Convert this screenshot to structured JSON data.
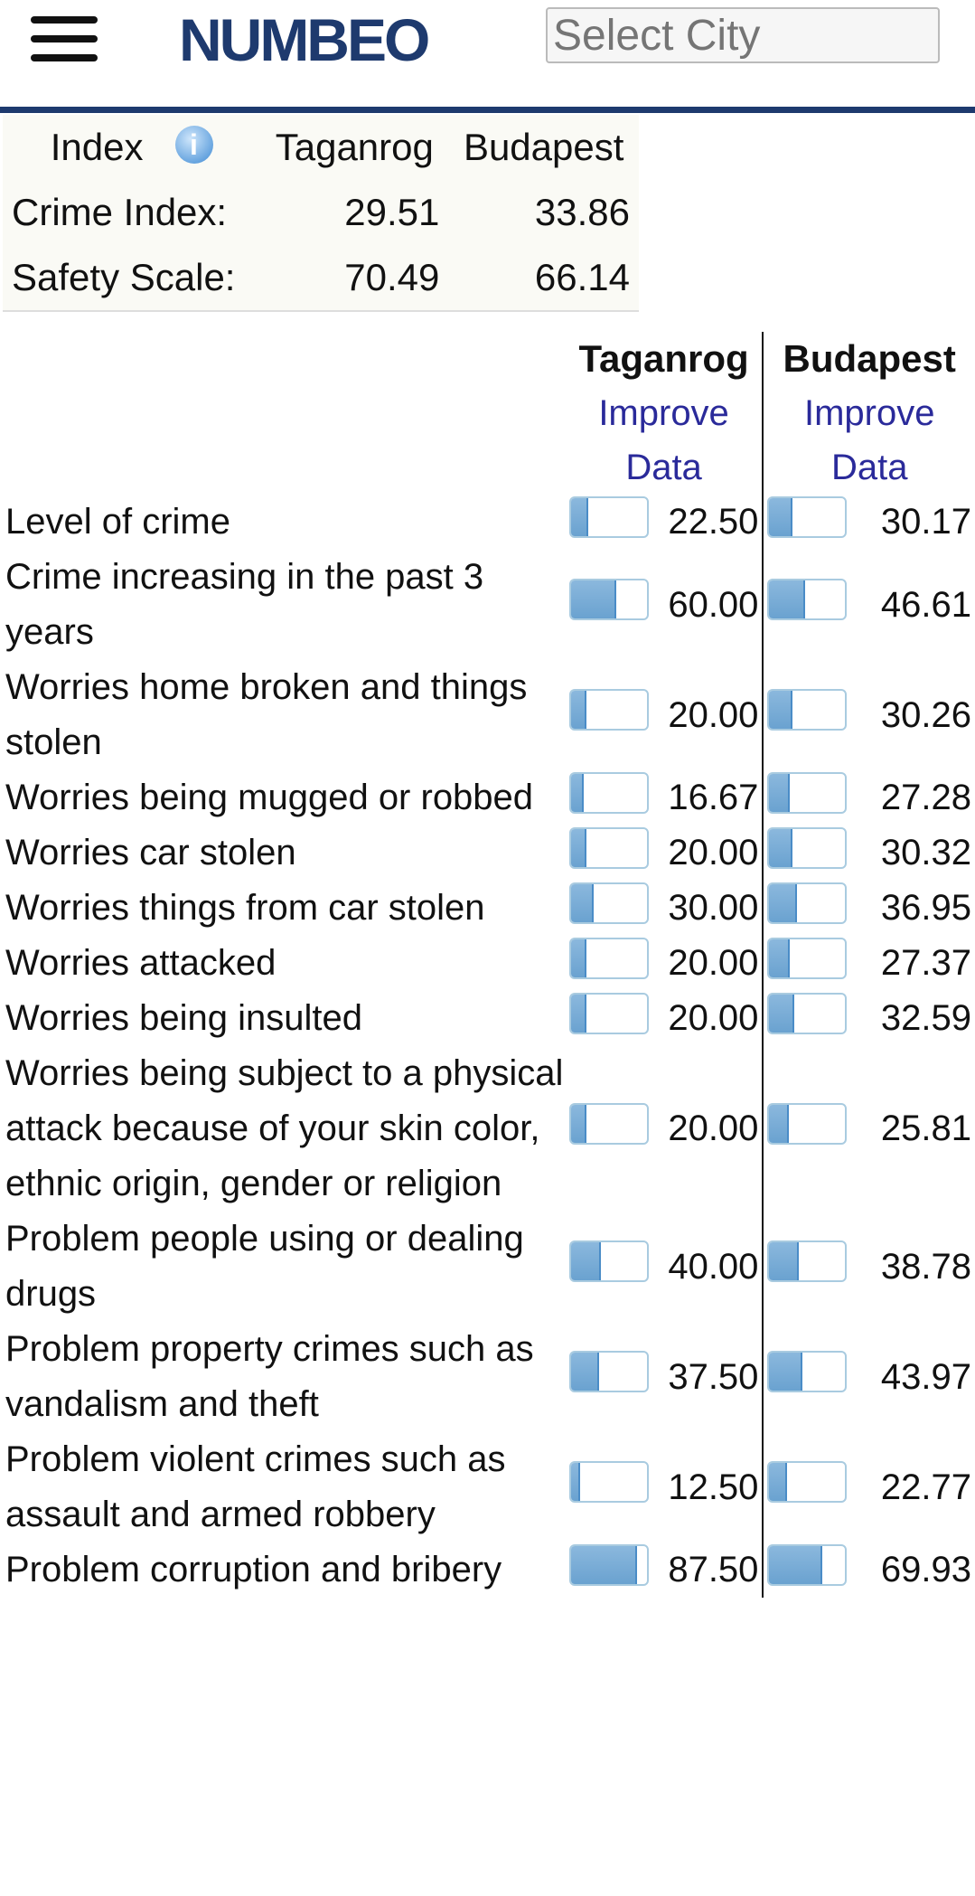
{
  "header": {
    "logo": "NUMBEO",
    "city_placeholder": "Select City"
  },
  "index_table": {
    "headers": [
      "Index",
      "Taganrog",
      "Budapest"
    ],
    "rows": [
      {
        "label": "Crime Index:",
        "values": [
          "29.51",
          "33.86"
        ]
      },
      {
        "label": "Safety Scale:",
        "values": [
          "70.49",
          "66.14"
        ]
      }
    ]
  },
  "comparison": {
    "cities": [
      "Taganrog",
      "Budapest"
    ],
    "improve_label": "Improve Data",
    "bar_color": "#6aa2d0",
    "rows": [
      {
        "label": "Level of crime",
        "values": [
          "22.50",
          "30.17"
        ]
      },
      {
        "label": "Crime increasing in the past 3 years",
        "values": [
          "60.00",
          "46.61"
        ]
      },
      {
        "label": "Worries home broken and things stolen",
        "values": [
          "20.00",
          "30.26"
        ]
      },
      {
        "label": "Worries being mugged or robbed",
        "values": [
          "16.67",
          "27.28"
        ]
      },
      {
        "label": "Worries car stolen",
        "values": [
          "20.00",
          "30.32"
        ]
      },
      {
        "label": "Worries things from car stolen",
        "values": [
          "30.00",
          "36.95"
        ]
      },
      {
        "label": "Worries attacked",
        "values": [
          "20.00",
          "27.37"
        ]
      },
      {
        "label": "Worries being insulted",
        "values": [
          "20.00",
          "32.59"
        ]
      },
      {
        "label": "Worries being subject to a physical attack because of your skin color, ethnic origin, gender or religion",
        "values": [
          "20.00",
          "25.81"
        ]
      },
      {
        "label": "Problem people using or dealing drugs",
        "values": [
          "40.00",
          "38.78"
        ]
      },
      {
        "label": "Problem property crimes such as vandalism and theft",
        "values": [
          "37.50",
          "43.97"
        ]
      },
      {
        "label": "Problem violent crimes such as assault and armed robbery",
        "values": [
          "12.50",
          "22.77"
        ]
      },
      {
        "label": "Problem corruption and bribery",
        "values": [
          "87.50",
          "69.93"
        ]
      }
    ]
  }
}
